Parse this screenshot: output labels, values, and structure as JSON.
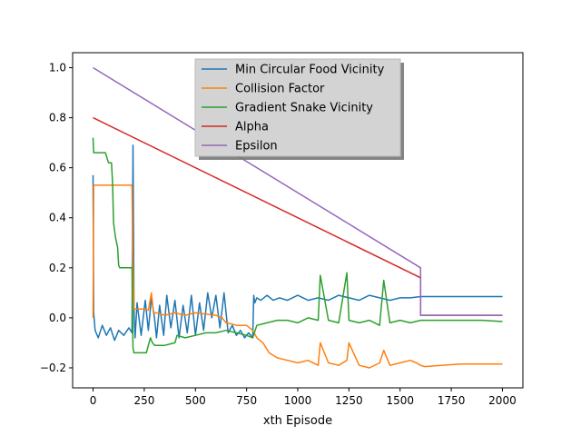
{
  "chart_data": {
    "type": "line",
    "title": "",
    "xlabel": "xth Episode",
    "ylabel": "",
    "xlim": [
      -100,
      2100
    ],
    "ylim": [
      -0.28,
      1.06
    ],
    "xticks": [
      0,
      250,
      500,
      750,
      1000,
      1250,
      1500,
      1750,
      2000
    ],
    "yticks": [
      -0.2,
      0.0,
      0.2,
      0.4,
      0.6,
      0.8,
      1.0
    ],
    "ytick_labels": [
      "−0.2",
      "0.0",
      "0.2",
      "0.4",
      "0.6",
      "0.8",
      "1.0"
    ],
    "grid": false,
    "legend_position": "top-center",
    "series": [
      {
        "name": "Min Circular Food Vicinity",
        "color": "#1f77b4",
        "x": [
          0,
          3,
          10,
          25,
          45,
          65,
          85,
          105,
          125,
          150,
          175,
          190,
          195,
          200,
          205,
          215,
          235,
          255,
          270,
          285,
          300,
          310,
          325,
          345,
          360,
          380,
          400,
          420,
          440,
          460,
          480,
          500,
          520,
          540,
          560,
          580,
          600,
          620,
          640,
          660,
          680,
          700,
          720,
          740,
          760,
          780,
          785,
          790,
          800,
          820,
          850,
          880,
          910,
          950,
          1000,
          1050,
          1100,
          1150,
          1200,
          1250,
          1300,
          1350,
          1400,
          1450,
          1500,
          1550,
          1600,
          1650,
          1700,
          1800,
          1900,
          2000
        ],
        "y": [
          0.57,
          0.02,
          -0.05,
          -0.08,
          -0.03,
          -0.07,
          -0.04,
          -0.09,
          -0.05,
          -0.07,
          -0.04,
          -0.06,
          0.69,
          0.03,
          -0.08,
          0.06,
          -0.07,
          0.07,
          -0.05,
          0.08,
          0.0,
          -0.08,
          0.05,
          -0.07,
          0.09,
          -0.04,
          0.07,
          -0.08,
          0.05,
          -0.06,
          0.09,
          -0.07,
          0.06,
          -0.05,
          0.1,
          0.0,
          0.09,
          -0.04,
          0.1,
          -0.06,
          -0.03,
          -0.07,
          -0.05,
          -0.08,
          -0.06,
          -0.08,
          0.09,
          0.06,
          0.08,
          0.07,
          0.09,
          0.07,
          0.08,
          0.07,
          0.09,
          0.07,
          0.08,
          0.07,
          0.09,
          0.08,
          0.07,
          0.09,
          0.08,
          0.07,
          0.08,
          0.08,
          0.085,
          0.085,
          0.085,
          0.085,
          0.085,
          0.085
        ]
      },
      {
        "name": "Collision Factor",
        "color": "#ff7f0e",
        "x": [
          0,
          3,
          190,
          195,
          200,
          250,
          270,
          285,
          295,
          310,
          350,
          400,
          450,
          500,
          550,
          600,
          630,
          650,
          680,
          700,
          750,
          780,
          800,
          830,
          860,
          900,
          950,
          1000,
          1050,
          1100,
          1110,
          1150,
          1200,
          1240,
          1250,
          1300,
          1350,
          1400,
          1420,
          1450,
          1500,
          1550,
          1580,
          1600,
          1620,
          1700,
          1800,
          1900,
          2000
        ],
        "y": [
          0.0,
          0.53,
          0.53,
          0.2,
          0.035,
          0.035,
          0.03,
          0.1,
          0.02,
          0.02,
          0.01,
          0.02,
          0.01,
          0.02,
          0.015,
          0.01,
          0.0,
          -0.02,
          -0.025,
          -0.03,
          -0.03,
          -0.05,
          -0.08,
          -0.1,
          -0.14,
          -0.16,
          -0.17,
          -0.18,
          -0.17,
          -0.19,
          -0.1,
          -0.18,
          -0.19,
          -0.17,
          -0.1,
          -0.19,
          -0.2,
          -0.18,
          -0.13,
          -0.19,
          -0.18,
          -0.17,
          -0.18,
          -0.19,
          -0.195,
          -0.19,
          -0.185,
          -0.185,
          -0.185
        ]
      },
      {
        "name": "Gradient Snake Vicinity",
        "color": "#2ca02c",
        "x": [
          0,
          3,
          60,
          75,
          90,
          95,
          100,
          110,
          120,
          125,
          130,
          190,
          195,
          200,
          210,
          260,
          280,
          290,
          300,
          350,
          400,
          410,
          450,
          500,
          550,
          600,
          650,
          700,
          750,
          780,
          800,
          850,
          900,
          950,
          1000,
          1050,
          1100,
          1110,
          1150,
          1200,
          1240,
          1250,
          1300,
          1350,
          1400,
          1420,
          1450,
          1500,
          1550,
          1600,
          1650,
          1700,
          1800,
          1900,
          2000
        ],
        "y": [
          0.72,
          0.66,
          0.66,
          0.62,
          0.62,
          0.54,
          0.38,
          0.32,
          0.28,
          0.21,
          0.2,
          0.2,
          -0.12,
          -0.14,
          -0.14,
          -0.14,
          -0.08,
          -0.1,
          -0.11,
          -0.11,
          -0.1,
          -0.07,
          -0.08,
          -0.07,
          -0.06,
          -0.06,
          -0.05,
          -0.06,
          -0.07,
          -0.08,
          -0.03,
          -0.02,
          -0.01,
          -0.01,
          -0.02,
          0.0,
          -0.01,
          0.17,
          -0.01,
          -0.02,
          0.18,
          -0.01,
          -0.02,
          -0.01,
          -0.03,
          0.15,
          -0.02,
          -0.01,
          -0.02,
          -0.01,
          -0.01,
          -0.01,
          -0.01,
          -0.01,
          -0.015
        ]
      },
      {
        "name": "Alpha",
        "color": "#d62728",
        "x": [
          0,
          1600,
          1600,
          2000
        ],
        "y": [
          0.8,
          0.16,
          0.01,
          0.01
        ]
      },
      {
        "name": "Epsilon",
        "color": "#9467bd",
        "x": [
          0,
          1600,
          1600,
          2000
        ],
        "y": [
          1.0,
          0.2,
          0.01,
          0.01
        ]
      }
    ]
  }
}
